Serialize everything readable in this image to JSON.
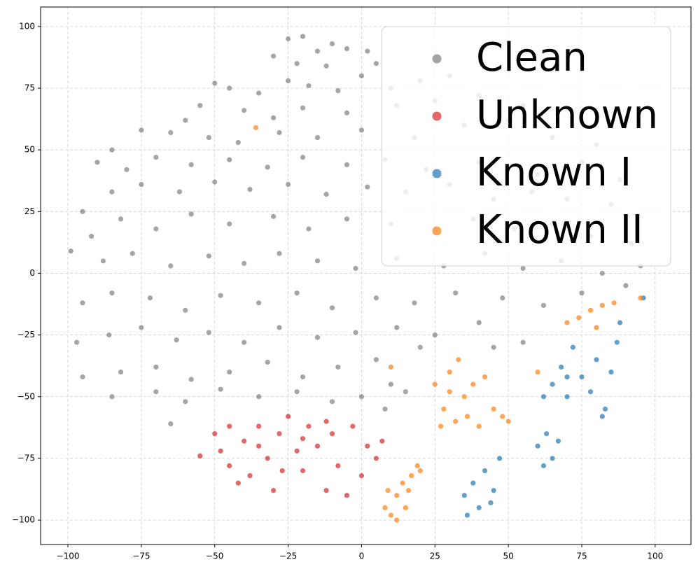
{
  "chart_data": {
    "type": "scatter",
    "xlim": [
      -109.3,
      112.2
    ],
    "ylim": [
      -109.9,
      107.9
    ],
    "xticks": [
      {
        "value": -100,
        "label": "−100"
      },
      {
        "value": -75,
        "label": "−75"
      },
      {
        "value": -50,
        "label": "−50"
      },
      {
        "value": -25,
        "label": "−25"
      },
      0,
      25,
      50,
      75,
      100
    ],
    "yticks": [
      {
        "value": -100,
        "label": "−100"
      },
      {
        "value": -75,
        "label": "−75"
      },
      {
        "value": -50,
        "label": "−50"
      },
      {
        "value": -25,
        "label": "−25"
      },
      0,
      25,
      50,
      75,
      100
    ],
    "grid": true,
    "legend": "upper right",
    "series": [
      {
        "name": "Clean",
        "color": "#7f7f7f",
        "x": [
          -25,
          -20,
          -10,
          -5,
          -15,
          -30,
          -22,
          -12,
          2,
          0,
          5,
          -50,
          -45,
          -35,
          -25,
          -18,
          -8,
          10,
          20,
          30,
          -60,
          -55,
          -40,
          -30,
          -20,
          -5,
          12,
          25,
          40,
          55,
          -85,
          -75,
          -65,
          -52,
          -42,
          -28,
          -15,
          0,
          18,
          35,
          50,
          65,
          80,
          -90,
          -80,
          -70,
          -58,
          -45,
          -32,
          -20,
          -5,
          8,
          22,
          40,
          60,
          75,
          88,
          -95,
          -85,
          -75,
          -62,
          -50,
          -38,
          -25,
          -12,
          2,
          15,
          30,
          45,
          58,
          70,
          85,
          -92,
          -82,
          -70,
          -58,
          -45,
          -30,
          -18,
          -5,
          10,
          25,
          38,
          52,
          65,
          78,
          92,
          -99,
          -88,
          -78,
          -65,
          -52,
          -40,
          -28,
          -15,
          -2,
          12,
          28,
          42,
          55,
          68,
          82,
          95,
          -95,
          -85,
          -72,
          -60,
          -48,
          -35,
          -22,
          -10,
          5,
          18,
          32,
          48,
          62,
          75,
          90,
          -97,
          -86,
          -75,
          -63,
          -52,
          -40,
          -28,
          -15,
          -2,
          12,
          25,
          40,
          55,
          45,
          20,
          -95,
          -82,
          -70,
          -58,
          -45,
          -32,
          -20,
          -8,
          5,
          10,
          -85,
          -70,
          -60,
          -48,
          -35,
          -22,
          -10,
          0,
          8,
          15,
          -65
        ],
        "values": [
          95,
          96,
          93,
          91,
          90,
          88,
          85,
          84,
          90,
          80,
          85,
          77,
          75,
          73,
          78,
          76,
          74,
          75,
          78,
          80,
          62,
          68,
          66,
          63,
          67,
          65,
          68,
          70,
          72,
          68,
          50,
          58,
          57,
          55,
          53,
          57,
          55,
          58,
          55,
          60,
          62,
          55,
          52,
          45,
          42,
          47,
          44,
          46,
          43,
          47,
          44,
          46,
          42,
          45,
          40,
          45,
          38,
          25,
          33,
          36,
          33,
          37,
          34,
          36,
          32,
          35,
          33,
          36,
          30,
          33,
          30,
          28,
          15,
          22,
          18,
          24,
          20,
          23,
          18,
          22,
          20,
          18,
          22,
          18,
          20,
          15,
          12,
          9,
          5,
          8,
          3,
          7,
          4,
          8,
          5,
          2,
          6,
          3,
          8,
          2,
          5,
          0,
          3,
          -12,
          -8,
          -10,
          -15,
          -9,
          -12,
          -8,
          -14,
          -10,
          -12,
          -8,
          -10,
          -13,
          -8,
          -5,
          -28,
          -25,
          -22,
          -27,
          -24,
          -28,
          -22,
          -26,
          -24,
          -22,
          -25,
          -20,
          -28,
          -30,
          -30,
          -42,
          -40,
          -38,
          -43,
          -40,
          -36,
          -42,
          -38,
          -35,
          -45,
          -50,
          -48,
          -52,
          -47,
          -50,
          -48,
          -52,
          -50,
          -55,
          -48,
          -61
        ]
      },
      {
        "name": "Unknown",
        "color": "#d62728",
        "x": [
          -50,
          -48,
          -45,
          -40,
          -38,
          -35,
          -32,
          -30,
          -28,
          -25,
          -22,
          -20,
          -18,
          -15,
          -12,
          -10,
          -8,
          -5,
          -3,
          0,
          2,
          5,
          7,
          -45,
          -42,
          -27,
          -12,
          -55,
          -35,
          -20
        ],
        "values": [
          -65,
          -72,
          -78,
          -68,
          -82,
          -62,
          -75,
          -88,
          -65,
          -58,
          -72,
          -80,
          -62,
          -70,
          -88,
          -65,
          -78,
          -90,
          -62,
          -82,
          -70,
          -75,
          -68,
          -62,
          -85,
          -80,
          -60,
          -74,
          -70,
          -67
        ]
      },
      {
        "name": "Known I",
        "color": "#1f77b4",
        "x": [
          35,
          38,
          40,
          42,
          45,
          47,
          36,
          44,
          60,
          63,
          65,
          62,
          67,
          65,
          68,
          70,
          72,
          75,
          78,
          80,
          83,
          85,
          87,
          88,
          82,
          70,
          62,
          96
        ],
        "values": [
          -90,
          -85,
          -95,
          -80,
          -88,
          -75,
          -98,
          -93,
          -70,
          -65,
          -75,
          -78,
          -68,
          -45,
          -38,
          -50,
          -30,
          -42,
          -48,
          -35,
          -55,
          -40,
          -28,
          -20,
          -58,
          -42,
          -50,
          -10
        ]
      },
      {
        "name": "Known II",
        "color": "#ff7f0e",
        "x": [
          8,
          10,
          12,
          14,
          15,
          17,
          19,
          12,
          16,
          20,
          9,
          25,
          28,
          30,
          32,
          35,
          33,
          38,
          40,
          42,
          45,
          48,
          50,
          27,
          36,
          30,
          70,
          74,
          78,
          82,
          86,
          80,
          -36,
          95,
          10,
          60
        ],
        "values": [
          -95,
          -98,
          -90,
          -85,
          -95,
          -82,
          -78,
          -100,
          -88,
          -80,
          -88,
          -45,
          -55,
          -40,
          -60,
          -50,
          -35,
          -45,
          -62,
          -42,
          -55,
          -58,
          -60,
          -62,
          -58,
          -48,
          -20,
          -18,
          -15,
          -13,
          -12,
          -22,
          59,
          -10,
          -38,
          -40
        ]
      }
    ]
  }
}
